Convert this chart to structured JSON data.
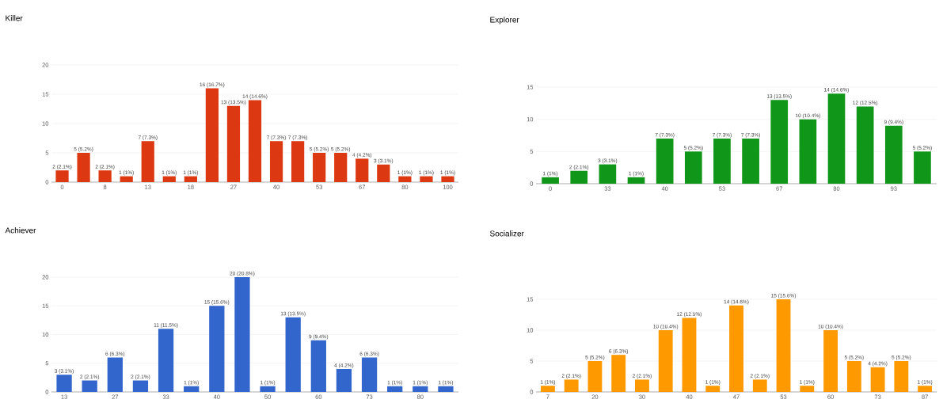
{
  "chart_data": [
    {
      "type": "bar",
      "title": "Killer",
      "color": "#dc3912",
      "grid": "y",
      "ylim": [
        0,
        20
      ],
      "yticks": [
        0,
        5,
        10,
        15,
        20
      ],
      "categories": [
        "0",
        null,
        "8",
        null,
        "13",
        null,
        "18",
        null,
        "27",
        null,
        "40",
        null,
        "53",
        null,
        "67",
        null,
        "80",
        null,
        "100"
      ],
      "values": [
        2,
        5,
        2,
        1,
        7,
        1,
        1,
        16,
        13,
        14,
        7,
        7,
        5,
        5,
        4,
        3,
        1,
        1,
        1
      ],
      "value_labels": [
        "2 (2.1%)",
        "5 (5.2%)",
        "2 (2.1%)",
        "1 (1%)",
        "7 (7.3%)",
        "1 (1%)",
        "1 (1%)",
        "16 (16.7%)",
        "13 (13.5%)",
        "14 (14.6%)",
        "7 (7.3%)",
        "7 (7.3%)",
        "5 (5.2%)",
        "5 (5.2%)",
        "4 (4.2%)",
        "3 (3.1%)",
        "1 (1%)",
        "1 (1%)",
        "1 (1%)"
      ]
    },
    {
      "type": "bar",
      "title": "Explorer",
      "color": "#109618",
      "grid": "y",
      "ylim": [
        0,
        15
      ],
      "yticks": [
        0,
        5,
        10,
        15
      ],
      "categories": [
        "0",
        null,
        "33",
        null,
        "40",
        null,
        "53",
        null,
        "67",
        null,
        "80",
        null,
        "93",
        null
      ],
      "values": [
        1,
        2,
        3,
        1,
        7,
        5,
        7,
        7,
        13,
        10,
        14,
        12,
        9,
        5
      ],
      "value_labels": [
        "1 (1%)",
        "2 (2.1%)",
        "3 (3.1%)",
        "1 (1%)",
        "7 (7.3%)",
        "5 (5.2%)",
        "7 (7.3%)",
        "7 (7.3%)",
        "13 (13.5%)",
        "10 (10.4%)",
        "14 (14.6%)",
        "12 (12.5%)",
        "9 (9.4%)",
        "5 (5.2%)"
      ]
    },
    {
      "type": "bar",
      "title": "Achiever",
      "color": "#3366cc",
      "grid": "y",
      "ylim": [
        0,
        20
      ],
      "yticks": [
        0,
        5,
        10,
        15,
        20
      ],
      "categories": [
        "13",
        null,
        "27",
        null,
        "33",
        null,
        "40",
        null,
        "50",
        null,
        "60",
        null,
        "73",
        null,
        "80",
        null
      ],
      "values": [
        3,
        2,
        6,
        2,
        11,
        1,
        15,
        20,
        1,
        13,
        9,
        4,
        6,
        1,
        1,
        1
      ],
      "value_labels": [
        "3 (3.1%)",
        "2 (2.1%)",
        "6 (6.3%)",
        "2 (2.1%)",
        "11 (11.5%)",
        "1 (1%)",
        "15 (15.6%)",
        "20 (20.8%)",
        "1 (1%)",
        "13 (13.5%)",
        "9 (9.4%)",
        "4 (4.2%)",
        "6 (6.3%)",
        "1 (1%)",
        "1 (1%)",
        "1 (1%)"
      ]
    },
    {
      "type": "bar",
      "title": "Socializer",
      "color": "#ff9900",
      "grid": "y",
      "ylim": [
        0,
        15
      ],
      "yticks": [
        0,
        5,
        10,
        15
      ],
      "categories": [
        "7",
        null,
        "20",
        null,
        "30",
        null,
        "40",
        null,
        "47",
        null,
        "53",
        null,
        "60",
        null,
        "73",
        null,
        "87"
      ],
      "values": [
        1,
        2,
        5,
        6,
        2,
        10,
        12,
        1,
        14,
        2,
        15,
        1,
        10,
        5,
        4,
        5,
        1
      ],
      "value_labels": [
        "1 (1%)",
        "2 (2.1%)",
        "5 (5.2%)",
        "6 (6.3%)",
        "2 (2.1%)",
        "10 (10.4%)",
        "12 (12.5%)",
        "1 (1%)",
        "14 (14.6%)",
        "2 (2.1%)",
        "15 (15.6%)",
        "1 (1%)",
        "10 (10.4%)",
        "5 (5.2%)",
        "4 (4.2%)",
        "5 (5.2%)",
        "1 (1%)"
      ]
    }
  ]
}
